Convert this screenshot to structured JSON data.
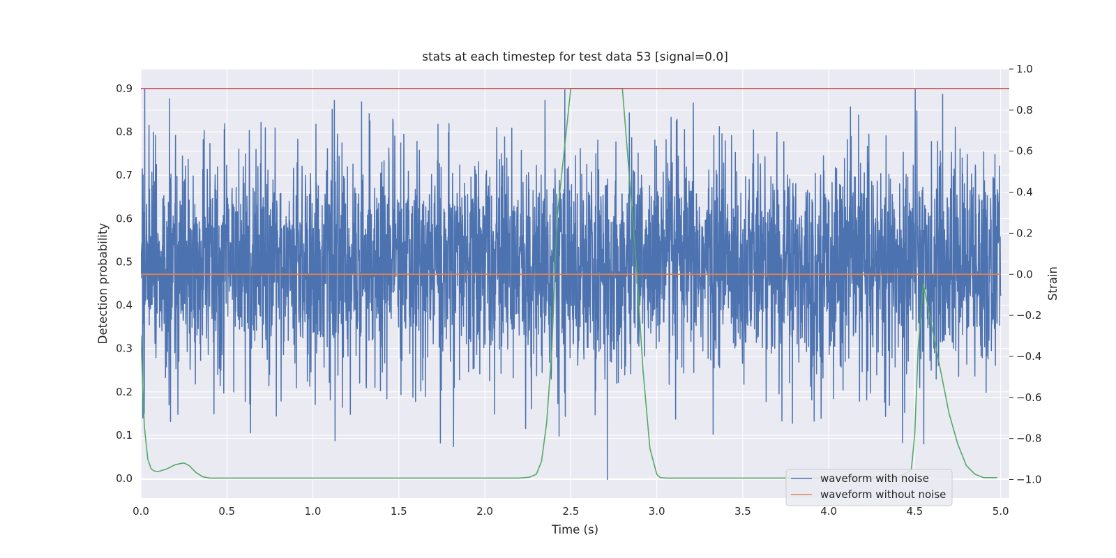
{
  "chart_data": {
    "type": "line",
    "title": "stats at each timestep for test data 53 [signal=0.0]",
    "xlabel": "Time (s)",
    "ylabel": "Detection probability",
    "y2label": "Strain",
    "xlim": [
      0.0,
      5.05
    ],
    "ylim": [
      -0.045,
      0.945
    ],
    "y2lim": [
      -1.09,
      1.0
    ],
    "xticks": [
      "0.0",
      "0.5",
      "1.0",
      "1.5",
      "2.0",
      "2.5",
      "3.0",
      "3.5",
      "4.0",
      "4.5",
      "5.0"
    ],
    "yticks": [
      "0.0",
      "0.1",
      "0.2",
      "0.3",
      "0.4",
      "0.5",
      "0.6",
      "0.7",
      "0.8",
      "0.9"
    ],
    "y2ticks": [
      "−1.0",
      "−0.8",
      "−0.6",
      "−0.4",
      "−0.2",
      "0.0",
      "0.2",
      "0.4",
      "0.6",
      "0.8",
      "1.0"
    ],
    "grid": true,
    "legend_position": "lower-right",
    "colors": {
      "noisy": "#4c72b0",
      "clean": "#dd8452",
      "probability": "#55a868",
      "threshold": "#c44e52",
      "plot_bg": "#eaeaf2",
      "grid": "#ffffff"
    },
    "series": [
      {
        "name": "waveform with noise",
        "axis": "right",
        "style": "noise",
        "x_range": [
          0.0,
          5.0
        ],
        "envelope_typical": [
          -0.45,
          0.55
        ],
        "envelope_extreme": [
          -1.0,
          0.9
        ]
      },
      {
        "name": "waveform without noise",
        "axis": "right",
        "x": [
          0.0,
          5.0
        ],
        "y": [
          0.0,
          0.0
        ]
      },
      {
        "axis": "left",
        "x": [
          0.0,
          0.02,
          0.04,
          0.06,
          0.08,
          0.1,
          0.15,
          0.2,
          0.25,
          0.28,
          0.32,
          0.36,
          0.4,
          0.5,
          1.0,
          1.5,
          2.0,
          2.2,
          2.26,
          2.3,
          2.33,
          2.36,
          2.39,
          2.42,
          2.5,
          2.8,
          2.88,
          2.92,
          2.96,
          3.0,
          3.02,
          3.06,
          3.2,
          4.0,
          4.4,
          4.48,
          4.5,
          4.52,
          4.55,
          4.6,
          4.65,
          4.7,
          4.75,
          4.8,
          4.85,
          4.9,
          4.98
        ],
        "y": [
          0.33,
          0.12,
          0.045,
          0.022,
          0.017,
          0.016,
          0.022,
          0.032,
          0.036,
          0.03,
          0.014,
          0.004,
          0.001,
          0.001,
          0.001,
          0.001,
          0.001,
          0.001,
          0.003,
          0.01,
          0.04,
          0.13,
          0.3,
          0.6,
          0.9,
          0.9,
          0.5,
          0.25,
          0.07,
          0.01,
          0.002,
          0.001,
          0.001,
          0.001,
          0.001,
          0.02,
          0.1,
          0.3,
          0.45,
          0.35,
          0.25,
          0.15,
          0.08,
          0.03,
          0.01,
          0.002,
          0.002
        ]
      },
      {
        "axis": "left",
        "x": [
          0.0,
          5.05
        ],
        "y": [
          0.9,
          0.9
        ]
      }
    ]
  }
}
